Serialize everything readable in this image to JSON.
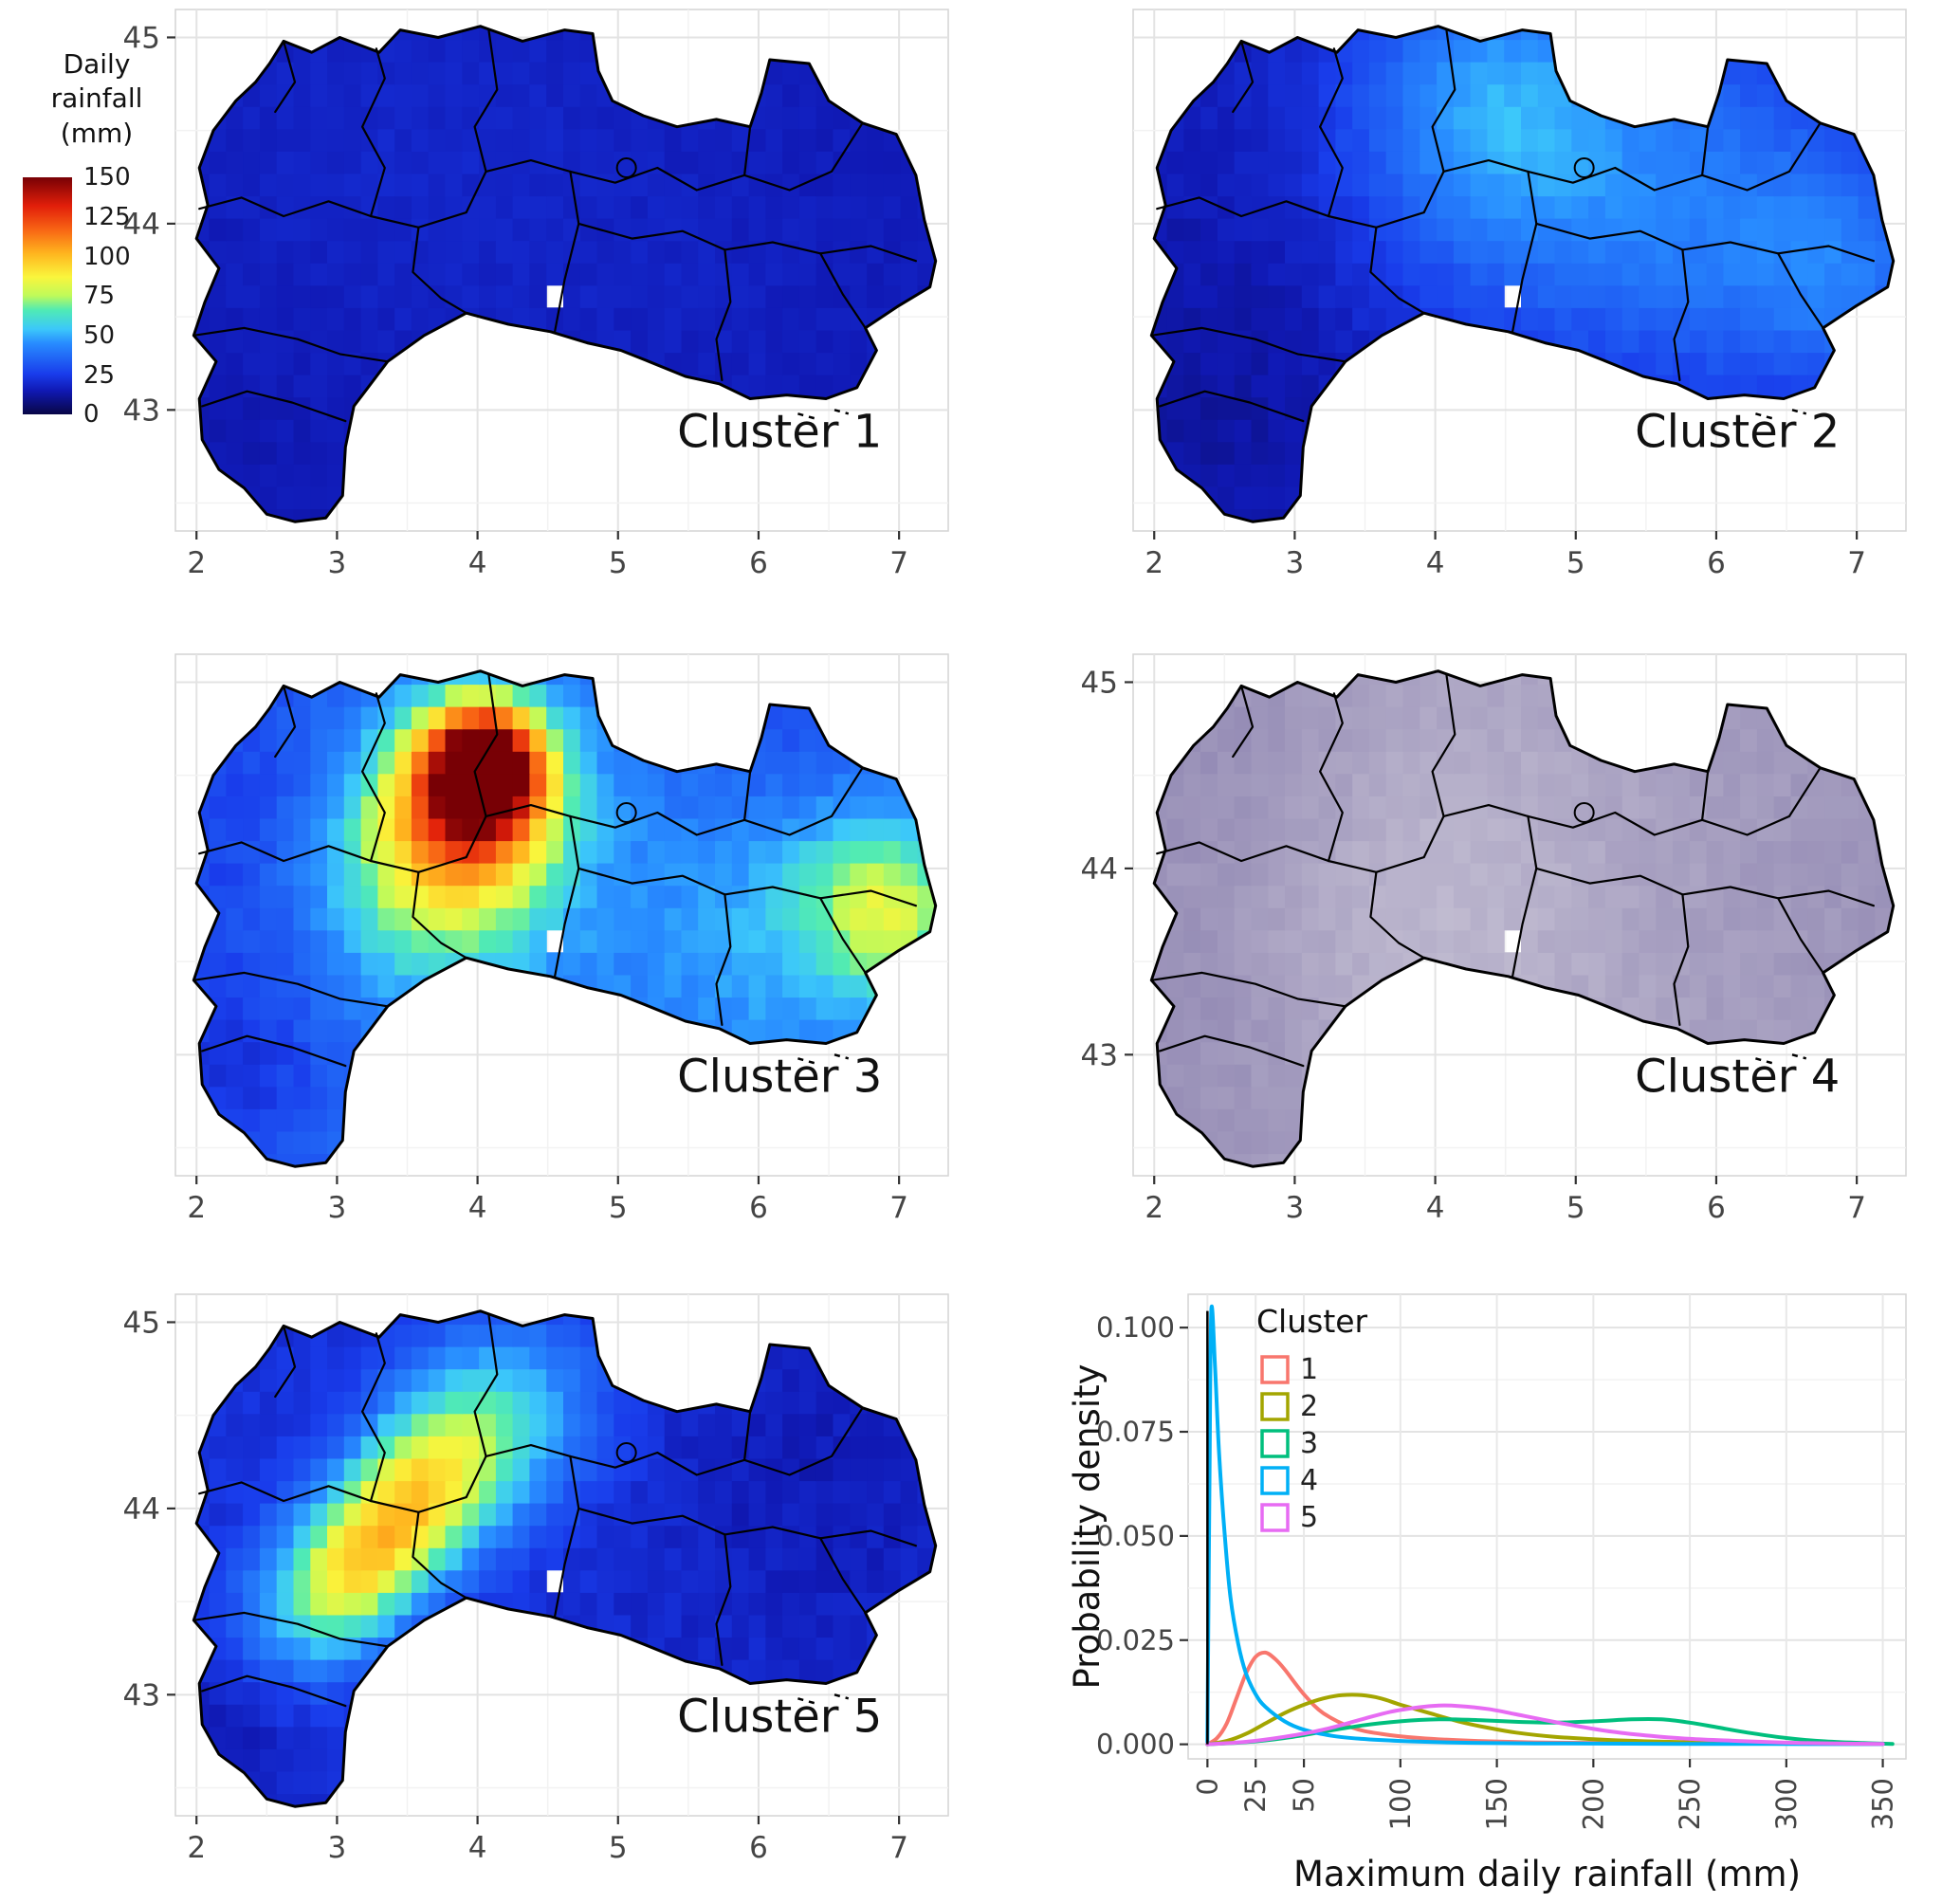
{
  "figure": {
    "colorbar": {
      "title_line1": "Daily rainfall",
      "title_line2": "(mm)",
      "tick_labels": [
        "150",
        "125",
        "100",
        "75",
        "50",
        "25",
        "0"
      ],
      "tick_values": [
        150,
        125,
        100,
        75,
        50,
        25,
        0
      ],
      "vmax": 150
    }
  },
  "chart_data": [
    {
      "type": "heatmap",
      "title": "Cluster 1",
      "x_ticks": [
        2,
        3,
        4,
        5,
        6,
        7
      ],
      "y_ticks": [
        43,
        44,
        45
      ],
      "show_y_labels": true,
      "lon_range": [
        1.85,
        7.35
      ],
      "lat_range": [
        42.35,
        45.15
      ],
      "colorbar_range": [
        0,
        150
      ],
      "palette": "jet",
      "field": {
        "base": 14,
        "noise": 3,
        "blobs": [
          [
            3.2,
            44.5,
            1.2,
            4
          ],
          [
            5.5,
            43.8,
            1.5,
            3
          ]
        ]
      }
    },
    {
      "type": "heatmap",
      "title": "Cluster 2",
      "x_ticks": [
        2,
        3,
        4,
        5,
        6,
        7
      ],
      "y_ticks": [
        43,
        44,
        45
      ],
      "show_y_labels": false,
      "lon_range": [
        1.85,
        7.35
      ],
      "lat_range": [
        42.35,
        45.15
      ],
      "colorbar_range": [
        0,
        150
      ],
      "palette": "jet",
      "field": {
        "base": 16,
        "noise": 4,
        "blobs": [
          [
            4.35,
            44.65,
            0.7,
            20
          ],
          [
            5.2,
            44.1,
            1.2,
            10
          ],
          [
            6.4,
            43.95,
            0.8,
            14
          ],
          [
            6.95,
            43.7,
            0.5,
            12
          ],
          [
            4.9,
            44.4,
            0.9,
            10
          ],
          [
            2.5,
            43.1,
            0.9,
            -4
          ]
        ]
      }
    },
    {
      "type": "heatmap",
      "title": "Cluster 3",
      "x_ticks": [
        2,
        3,
        4,
        5,
        6,
        7
      ],
      "y_ticks": [
        43,
        44,
        45
      ],
      "show_y_labels": false,
      "lon_range": [
        1.85,
        7.35
      ],
      "lat_range": [
        42.35,
        45.15
      ],
      "colorbar_range": [
        0,
        150
      ],
      "palette": "jet",
      "field": {
        "base": 38,
        "noise": 6,
        "blobs": [
          [
            4.05,
            44.55,
            0.28,
            105
          ],
          [
            3.95,
            44.35,
            0.45,
            55
          ],
          [
            3.75,
            44.1,
            0.55,
            28
          ],
          [
            3.5,
            43.85,
            0.6,
            15
          ],
          [
            6.95,
            43.75,
            0.35,
            30
          ],
          [
            6.6,
            43.9,
            0.5,
            15
          ],
          [
            5.9,
            43.55,
            0.9,
            8
          ],
          [
            2.4,
            44.3,
            0.8,
            -12
          ],
          [
            2.2,
            42.9,
            0.6,
            -14
          ],
          [
            6.2,
            44.7,
            0.5,
            -10
          ]
        ]
      }
    },
    {
      "type": "heatmap",
      "title": "Cluster 4",
      "x_ticks": [
        2,
        3,
        4,
        5,
        6,
        7
      ],
      "y_ticks": [
        43,
        44,
        45
      ],
      "show_y_labels": true,
      "lon_range": [
        1.85,
        7.35
      ],
      "lat_range": [
        42.35,
        45.15
      ],
      "colorbar_range": [
        0,
        150
      ],
      "palette": "purple",
      "field": {
        "base": 9,
        "noise": 2,
        "blobs": [
          [
            2.55,
            44.6,
            0.8,
            3
          ],
          [
            2.3,
            43.1,
            0.8,
            3
          ],
          [
            6.5,
            44.0,
            1.5,
            2
          ],
          [
            3.8,
            43.7,
            1.0,
            -3
          ],
          [
            4.8,
            43.9,
            1.5,
            -2
          ]
        ]
      }
    },
    {
      "type": "heatmap",
      "title": "Cluster 5",
      "x_ticks": [
        2,
        3,
        4,
        5,
        6,
        7
      ],
      "y_ticks": [
        43,
        44,
        45
      ],
      "show_y_labels": true,
      "lon_range": [
        1.85,
        7.35
      ],
      "lat_range": [
        42.35,
        45.15
      ],
      "colorbar_range": [
        0,
        150
      ],
      "palette": "jet",
      "field": {
        "base": 22,
        "noise": 5,
        "blobs": [
          [
            2.95,
            43.55,
            0.33,
            38
          ],
          [
            3.25,
            43.8,
            0.33,
            42
          ],
          [
            3.55,
            44.05,
            0.35,
            40
          ],
          [
            3.85,
            44.3,
            0.4,
            30
          ],
          [
            4.15,
            44.5,
            0.45,
            18
          ],
          [
            2.6,
            43.3,
            0.4,
            12
          ],
          [
            4.5,
            44.65,
            0.5,
            10
          ],
          [
            6.5,
            44.2,
            1.2,
            -6
          ],
          [
            2.2,
            42.8,
            0.5,
            -8
          ]
        ]
      }
    },
    {
      "type": "line",
      "xlabel": "Maximum daily rainfall (mm)",
      "ylabel": "Probability density",
      "x_ticks": [
        0,
        25,
        50,
        100,
        150,
        200,
        250,
        300,
        350
      ],
      "y_tick_values": [
        0.0,
        0.025,
        0.05,
        0.075,
        0.1
      ],
      "y_tick_labels": [
        "0.000",
        "0.025",
        "0.050",
        "0.075",
        "0.100"
      ],
      "xlim": [
        -10,
        362
      ],
      "ylim": [
        -0.0035,
        0.108
      ],
      "vline_x": 0,
      "vline_ymax": 0.104,
      "legend": {
        "title": "Cluster",
        "entries": [
          {
            "label": "1",
            "color": "#F8766D"
          },
          {
            "label": "2",
            "color": "#A3A500"
          },
          {
            "label": "3",
            "color": "#00BF7D"
          },
          {
            "label": "4",
            "color": "#00B0F6"
          },
          {
            "label": "5",
            "color": "#E76BF3"
          }
        ]
      },
      "series": [
        {
          "name": "1",
          "color": "#F8766D",
          "points": [
            [
              0,
              0
            ],
            [
              5,
              0.0015
            ],
            [
              10,
              0.005
            ],
            [
              15,
              0.011
            ],
            [
              20,
              0.017
            ],
            [
              25,
              0.021
            ],
            [
              30,
              0.022
            ],
            [
              35,
              0.0205
            ],
            [
              40,
              0.018
            ],
            [
              50,
              0.012
            ],
            [
              60,
              0.0075
            ],
            [
              75,
              0.004
            ],
            [
              90,
              0.0025
            ],
            [
              110,
              0.0015
            ],
            [
              140,
              0.0008
            ],
            [
              180,
              0.0004
            ],
            [
              250,
              0.0002
            ],
            [
              350,
              0.0001
            ]
          ]
        },
        {
          "name": "2",
          "color": "#A3A500",
          "points": [
            [
              0,
              0
            ],
            [
              10,
              0.0008
            ],
            [
              20,
              0.0025
            ],
            [
              30,
              0.005
            ],
            [
              40,
              0.0075
            ],
            [
              50,
              0.0095
            ],
            [
              60,
              0.011
            ],
            [
              70,
              0.0118
            ],
            [
              80,
              0.0118
            ],
            [
              90,
              0.011
            ],
            [
              100,
              0.0095
            ],
            [
              115,
              0.0075
            ],
            [
              130,
              0.0055
            ],
            [
              145,
              0.004
            ],
            [
              160,
              0.0028
            ],
            [
              180,
              0.0018
            ],
            [
              210,
              0.001
            ],
            [
              250,
              0.0005
            ],
            [
              300,
              0.0002
            ],
            [
              350,
              0.0001
            ]
          ]
        },
        {
          "name": "3",
          "color": "#00BF7D",
          "points": [
            [
              0,
              0
            ],
            [
              20,
              0.0005
            ],
            [
              40,
              0.0015
            ],
            [
              60,
              0.003
            ],
            [
              80,
              0.0045
            ],
            [
              100,
              0.0055
            ],
            [
              120,
              0.006
            ],
            [
              140,
              0.0058
            ],
            [
              160,
              0.0054
            ],
            [
              180,
              0.0052
            ],
            [
              200,
              0.0055
            ],
            [
              220,
              0.006
            ],
            [
              235,
              0.006
            ],
            [
              250,
              0.0052
            ],
            [
              265,
              0.004
            ],
            [
              280,
              0.0028
            ],
            [
              300,
              0.0015
            ],
            [
              320,
              0.0007
            ],
            [
              340,
              0.0003
            ],
            [
              355,
              0.0001
            ]
          ]
        },
        {
          "name": "4",
          "color": "#00B0F6",
          "points": [
            [
              0,
              0.0005
            ],
            [
              1,
              0.06
            ],
            [
              2,
              0.104
            ],
            [
              4,
              0.09
            ],
            [
              6,
              0.07
            ],
            [
              9,
              0.05
            ],
            [
              12,
              0.035
            ],
            [
              16,
              0.024
            ],
            [
              20,
              0.017
            ],
            [
              25,
              0.012
            ],
            [
              30,
              0.009
            ],
            [
              40,
              0.0055
            ],
            [
              50,
              0.0035
            ],
            [
              65,
              0.002
            ],
            [
              80,
              0.0013
            ],
            [
              100,
              0.0008
            ],
            [
              130,
              0.0004
            ],
            [
              170,
              0.0002
            ],
            [
              250,
              0.0001
            ],
            [
              350,
              5e-05
            ]
          ]
        },
        {
          "name": "5",
          "color": "#E76BF3",
          "points": [
            [
              0,
              0
            ],
            [
              20,
              0.0006
            ],
            [
              40,
              0.0018
            ],
            [
              60,
              0.0035
            ],
            [
              80,
              0.006
            ],
            [
              95,
              0.0078
            ],
            [
              110,
              0.0089
            ],
            [
              120,
              0.0093
            ],
            [
              130,
              0.0092
            ],
            [
              145,
              0.0085
            ],
            [
              160,
              0.0072
            ],
            [
              175,
              0.0058
            ],
            [
              190,
              0.0045
            ],
            [
              210,
              0.003
            ],
            [
              230,
              0.002
            ],
            [
              250,
              0.0013
            ],
            [
              275,
              0.0008
            ],
            [
              300,
              0.0004
            ],
            [
              325,
              0.0002
            ],
            [
              350,
              0.0001
            ]
          ]
        }
      ]
    }
  ]
}
